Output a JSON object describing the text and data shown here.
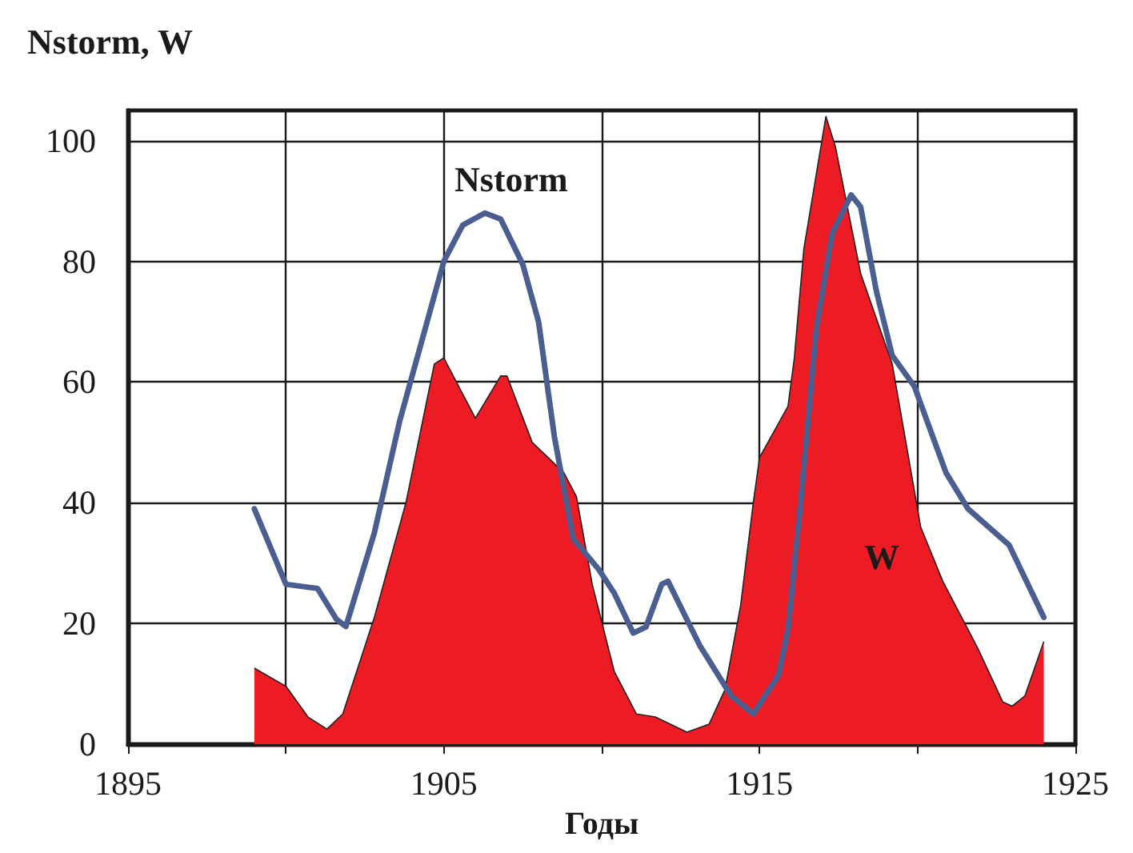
{
  "chart_data": {
    "type": "area",
    "ylabel": "Nstorm, W",
    "xlabel": "Годы",
    "xlim": [
      1895,
      1925
    ],
    "xticks": [
      1895,
      {
        "value": 1900,
        "label": null
      },
      1905,
      {
        "value": 1910,
        "label": null
      },
      1915,
      {
        "value": 1920,
        "label": null
      },
      1925
    ],
    "ylim": [
      0,
      105
    ],
    "yticks": [
      0,
      20,
      40,
      60,
      80,
      100
    ],
    "grid": true,
    "marker": "none",
    "series": [
      {
        "type": "area",
        "name": "W",
        "color": "#ed1c24",
        "x": [
          1899.0,
          1900.0,
          1900.7,
          1901.3,
          1901.8,
          1902.8,
          1903.8,
          1904.7,
          1905.0,
          1906.0,
          1906.8,
          1907.0,
          1907.8,
          1908.8,
          1909.2,
          1909.7,
          1910.4,
          1911.1,
          1911.7,
          1912.7,
          1913.4,
          1913.9,
          1914.4,
          1914.8,
          1915.0,
          1915.9,
          1916.1,
          1916.4,
          1917.1,
          1917.4,
          1918.2,
          1919.2,
          1920.1,
          1920.8,
          1921.9,
          1922.7,
          1923.0,
          1923.4,
          1924.0
        ],
        "values": [
          12.6,
          9.6,
          4.5,
          2.5,
          5,
          21,
          40,
          63,
          64,
          54,
          61,
          61,
          50,
          45,
          41,
          26.5,
          12,
          5,
          4.5,
          2,
          3.3,
          9,
          23,
          40,
          47.5,
          56,
          64,
          82,
          104,
          99,
          78,
          63,
          36,
          27,
          16,
          7,
          6.3,
          8,
          17
        ]
      },
      {
        "type": "line",
        "name": "Nstorm",
        "color": "#4a5f8f",
        "line_style": "solid",
        "x": [
          1899.0,
          1900.0,
          1900.7,
          1901.0,
          1901.6,
          1901.9,
          1902.8,
          1903.6,
          1905.0,
          1905.6,
          1906.3,
          1906.8,
          1907.5,
          1908.0,
          1908.5,
          1909.1,
          1909.9,
          1910.4,
          1911.0,
          1911.4,
          1911.9,
          1912.1,
          1913.1,
          1914.1,
          1914.8,
          1915.6,
          1915.9,
          1916.3,
          1916.8,
          1917.3,
          1917.9,
          1918.2,
          1918.7,
          1919.2,
          1919.9,
          1920.9,
          1921.6,
          1922.9,
          1924.0
        ],
        "values": [
          39,
          26.5,
          26,
          25.8,
          20.7,
          19.5,
          35,
          53.5,
          80,
          86,
          88,
          87,
          79.5,
          70,
          51,
          34,
          29,
          25,
          18.4,
          19.4,
          26.5,
          27,
          16.4,
          8,
          5,
          11.4,
          19,
          40,
          69,
          84.6,
          91,
          89,
          75,
          64.4,
          59.3,
          45,
          39,
          33,
          21
        ]
      }
    ]
  }
}
